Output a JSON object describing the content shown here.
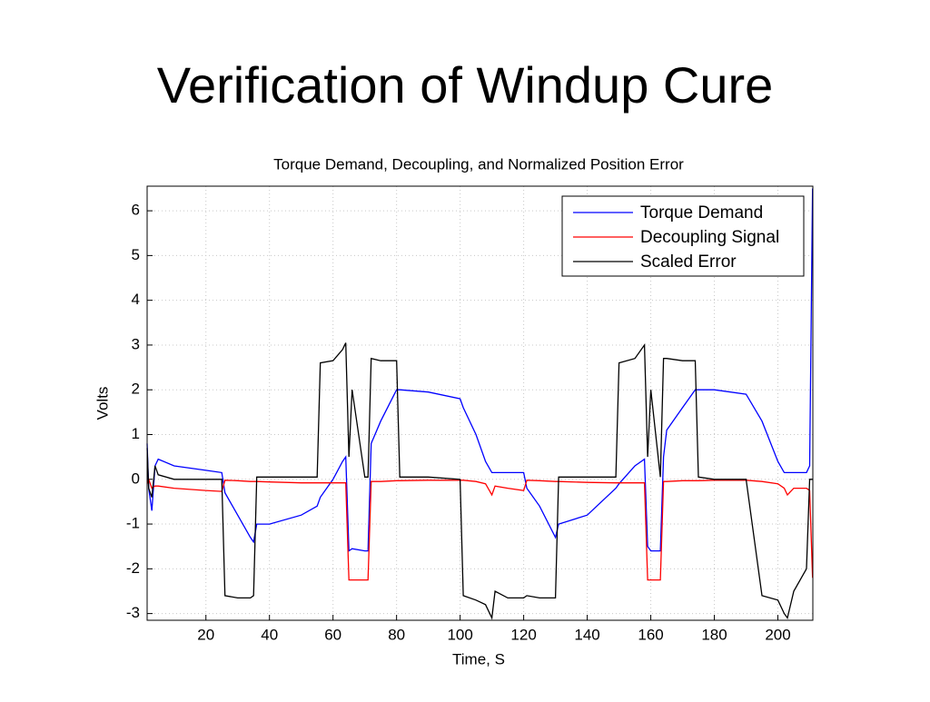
{
  "slide_title": "Verification of Windup Cure",
  "chart_data": {
    "type": "line",
    "title": "Torque Demand, Decoupling, and Normalized Position Error",
    "x_label": "Time, S",
    "y_label": "Volts",
    "x": [
      1.5,
      2,
      3,
      4,
      5,
      10,
      20,
      25,
      26,
      30,
      34,
      35,
      36,
      40,
      50,
      55,
      56,
      60,
      63,
      64,
      65,
      66,
      70,
      71,
      72,
      75,
      80,
      81,
      90,
      100,
      101,
      105,
      108,
      110,
      111,
      115,
      120,
      121,
      125,
      130,
      131,
      140,
      149,
      150,
      155,
      158,
      159,
      160,
      163,
      164,
      165,
      170,
      174,
      175,
      180,
      190,
      195,
      200,
      202,
      203,
      205,
      209,
      210,
      210.9
    ],
    "series": [
      {
        "name": "Torque Demand",
        "color": "#0000ff",
        "values": [
          0.8,
          -0.2,
          -0.7,
          0.3,
          0.45,
          0.3,
          0.2,
          0.15,
          -0.3,
          -0.8,
          -1.3,
          -1.4,
          -1.0,
          -1.0,
          -0.8,
          -0.6,
          -0.4,
          0,
          0.4,
          0.5,
          -1.6,
          -1.55,
          -1.6,
          -1.6,
          0.8,
          1.3,
          2.0,
          2.0,
          1.95,
          1.8,
          1.6,
          1.0,
          0.4,
          0.15,
          0.15,
          0.15,
          0.15,
          -0.2,
          -0.6,
          -1.3,
          -1.0,
          -0.8,
          -0.2,
          -0.1,
          0.3,
          0.45,
          -1.5,
          -1.6,
          -1.6,
          0.5,
          1.1,
          1.6,
          2.0,
          2.0,
          2.0,
          1.9,
          1.3,
          0.4,
          0.15,
          0.15,
          0.15,
          0.15,
          0.3,
          6.5
        ]
      },
      {
        "name": "Decoupling Signal",
        "color": "#ff0000",
        "values": [
          -0.1,
          0,
          -0.2,
          -0.15,
          -0.15,
          -0.2,
          -0.25,
          -0.27,
          -0.02,
          -0.03,
          -0.05,
          -0.05,
          -0.05,
          -0.06,
          -0.08,
          -0.08,
          -0.08,
          -0.08,
          -0.08,
          -0.08,
          -2.25,
          -2.25,
          -2.25,
          -2.25,
          -0.05,
          -0.05,
          -0.03,
          -0.03,
          -0.02,
          -0.02,
          -0.02,
          -0.05,
          -0.1,
          -0.35,
          -0.15,
          -0.2,
          -0.25,
          -0.02,
          -0.03,
          -0.05,
          -0.05,
          -0.07,
          -0.08,
          -0.08,
          -0.08,
          -0.08,
          -2.25,
          -2.25,
          -2.25,
          -0.05,
          -0.05,
          -0.03,
          -0.03,
          -0.03,
          -0.02,
          -0.02,
          -0.05,
          -0.1,
          -0.2,
          -0.35,
          -0.2,
          -0.2,
          -0.25,
          -2.2
        ]
      },
      {
        "name": "Scaled Error",
        "color": "#000000",
        "values": [
          0.7,
          -0.2,
          -0.4,
          0.3,
          0.1,
          0,
          0,
          0,
          -2.6,
          -2.65,
          -2.65,
          -2.6,
          0.05,
          0.05,
          0.05,
          0.05,
          2.6,
          2.65,
          2.9,
          3.05,
          0.5,
          2.0,
          0.05,
          0.05,
          2.7,
          2.65,
          2.65,
          0.05,
          0.05,
          0,
          -2.6,
          -2.7,
          -2.8,
          -3.1,
          -2.5,
          -2.65,
          -2.65,
          -2.6,
          -2.65,
          -2.65,
          0.05,
          0.05,
          0.05,
          2.6,
          2.7,
          3.0,
          0.5,
          2.0,
          0.05,
          2.7,
          2.7,
          2.65,
          2.65,
          0.05,
          0,
          0,
          -2.6,
          -2.7,
          -3.0,
          -3.1,
          -2.5,
          -2.0,
          0,
          0
        ]
      }
    ],
    "xlim": [
      1.5,
      211
    ],
    "ylim": [
      -3.15,
      6.55
    ],
    "xticks": [
      20,
      40,
      60,
      80,
      100,
      120,
      140,
      160,
      180,
      200
    ],
    "yticks": [
      -3,
      -2,
      -1,
      0,
      1,
      2,
      3,
      4,
      5,
      6
    ],
    "grid": true,
    "legend": "upper right"
  }
}
